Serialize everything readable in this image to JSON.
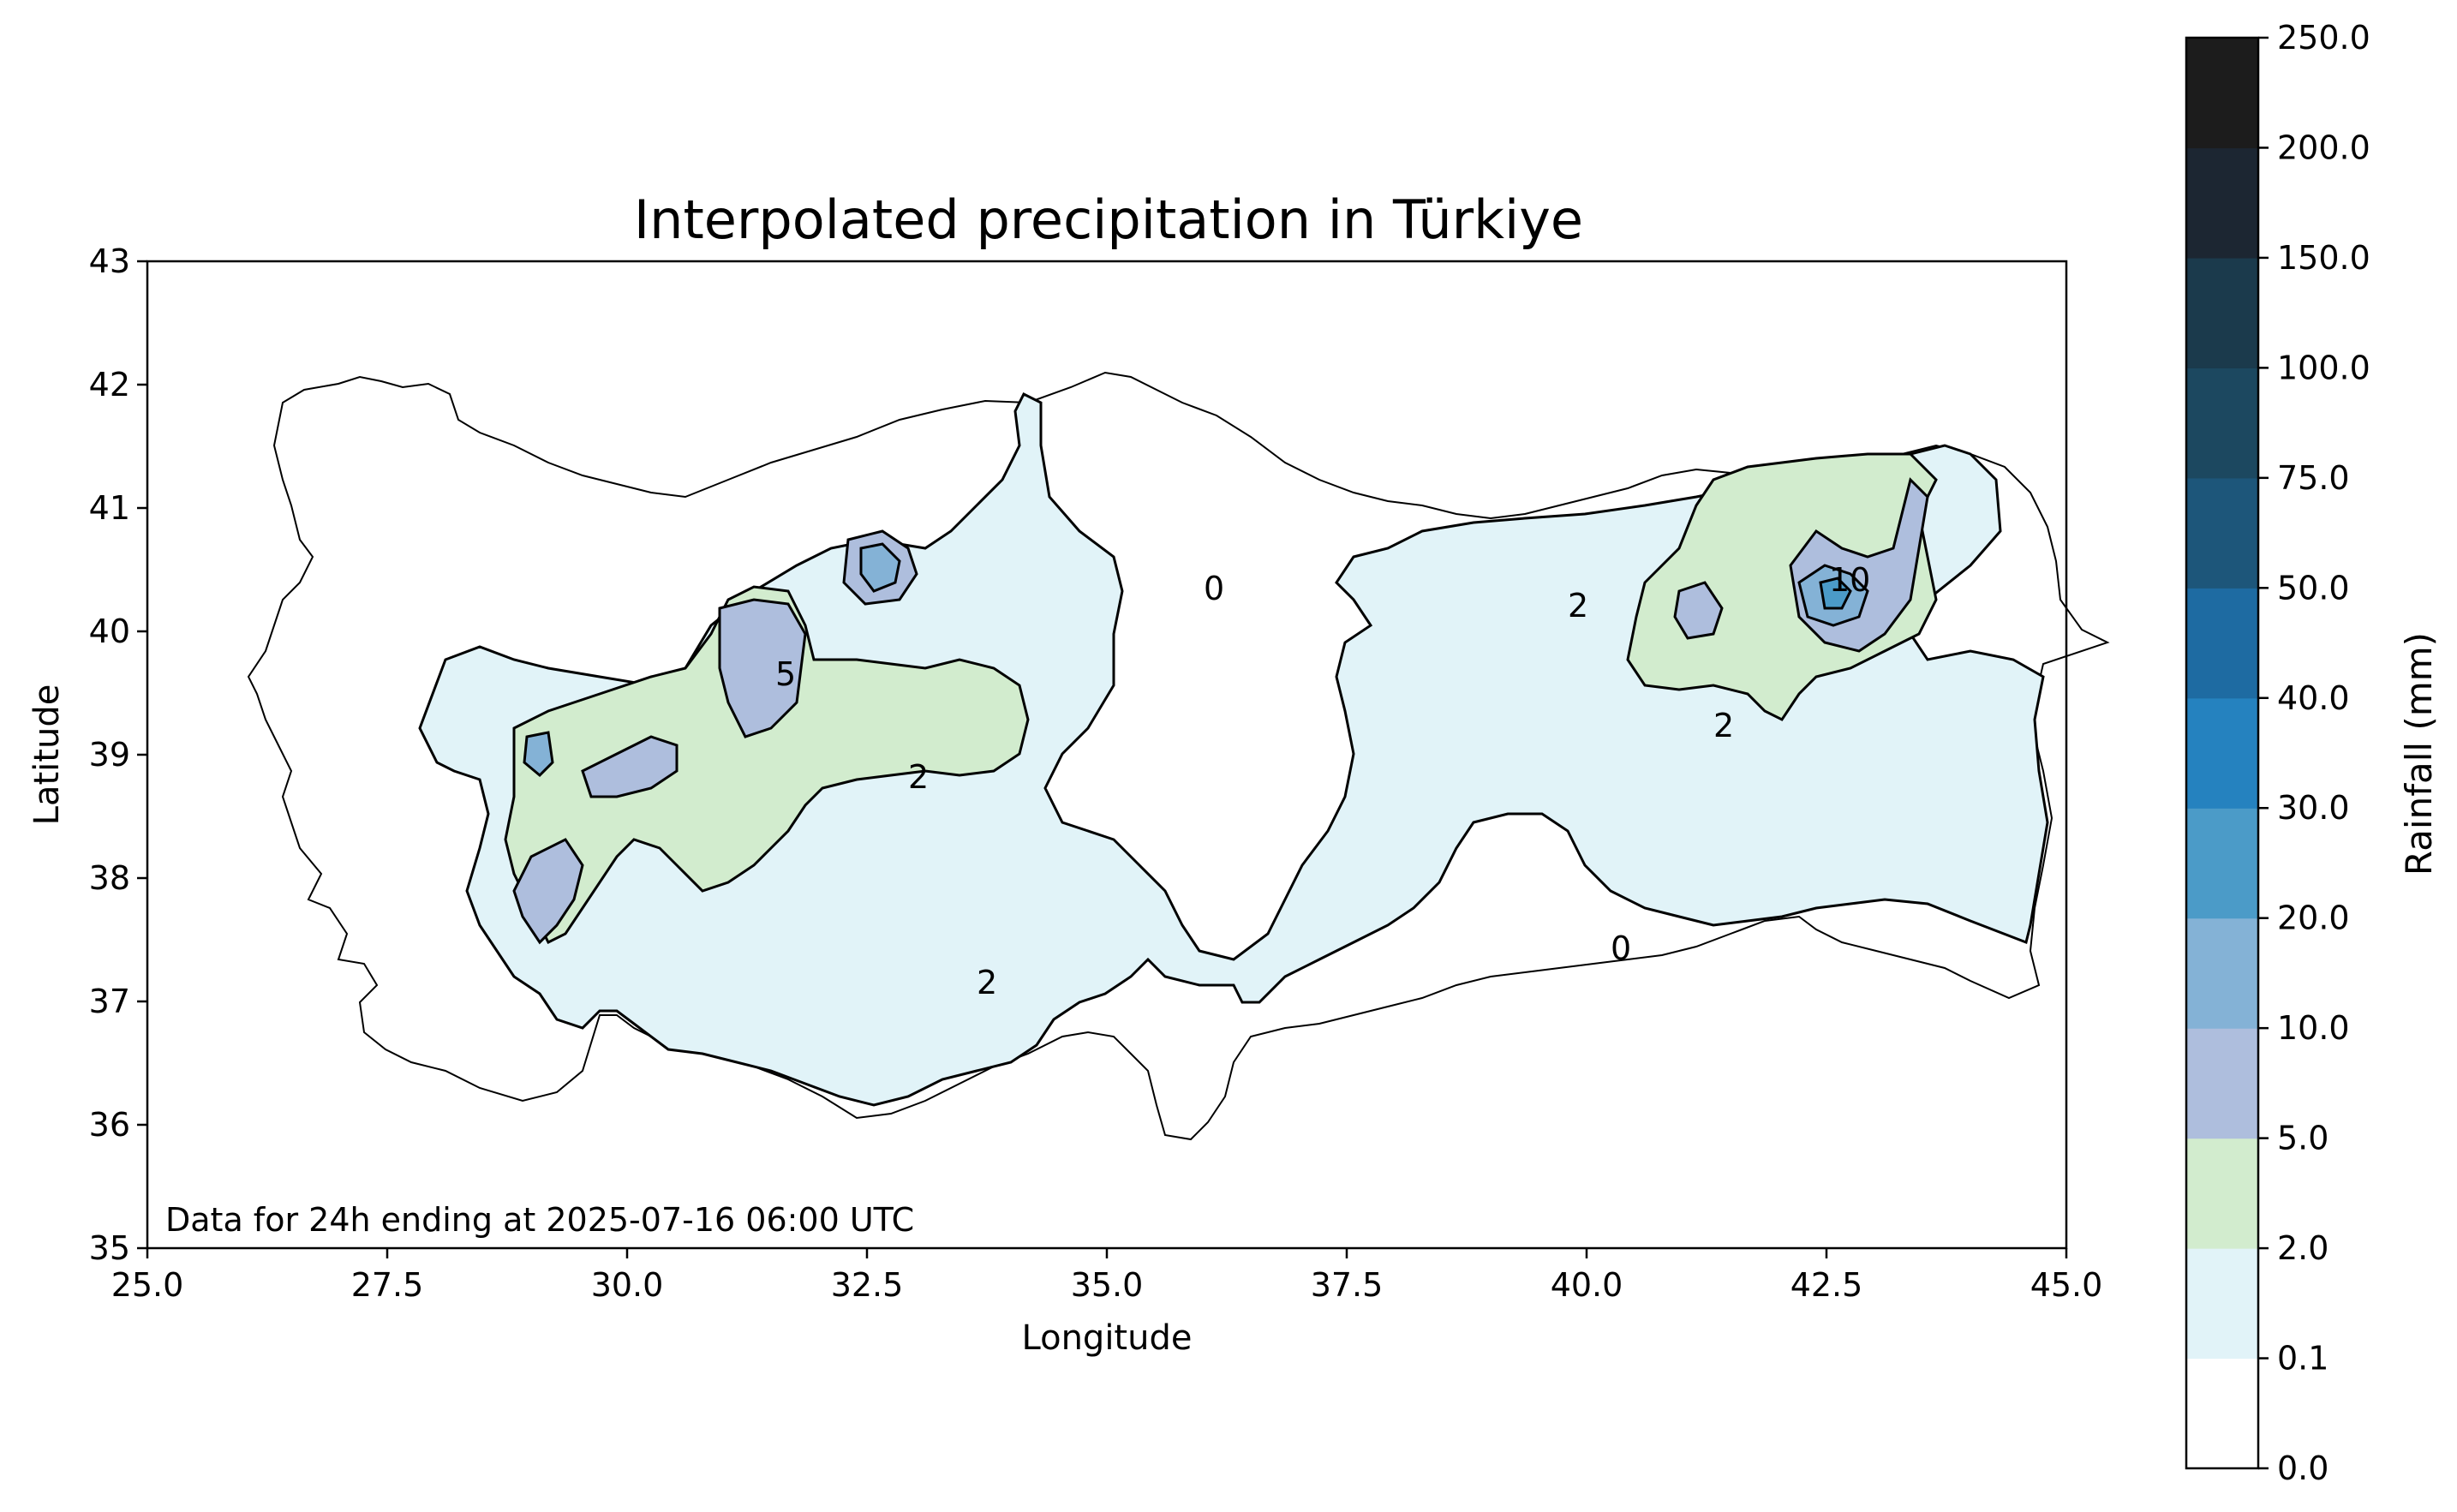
{
  "figure": {
    "title": "Interpolated precipitation in Türkiye",
    "xlabel": "Longitude",
    "ylabel": "Latitude",
    "note": "Data for 24h ending at 2025-07-16 06:00 UTC"
  },
  "axes": {
    "xlim": [
      25.0,
      45.0
    ],
    "ylim": [
      35,
      43
    ],
    "xticks": [
      "25.0",
      "27.5",
      "30.0",
      "32.5",
      "35.0",
      "37.5",
      "40.0",
      "42.5",
      "45.0"
    ],
    "yticks": [
      "35",
      "36",
      "37",
      "38",
      "39",
      "40",
      "41",
      "42",
      "43"
    ]
  },
  "colorbar": {
    "label": "Rainfall (mm)",
    "bounds": [
      "0.0",
      "0.1",
      "2.0",
      "5.0",
      "10.0",
      "20.0",
      "30.0",
      "40.0",
      "50.0",
      "75.0",
      "100.0",
      "150.0",
      "200.0",
      "250.0"
    ],
    "colors": [
      "#ffffff",
      "#e1f3f8",
      "#d2ecce",
      "#aebedd",
      "#84b2d6",
      "#4b9bc8",
      "#2582bf",
      "#1e6ba2",
      "#1d567a",
      "#1c4860",
      "#1b3a4c",
      "#1c2632",
      "#1c1c1c"
    ]
  },
  "map": {
    "type": "filled-contour",
    "region": "Türkiye",
    "contour_labels": [
      "0",
      "2",
      "5",
      "10"
    ],
    "regions": [
      {
        "level": "0.1-2.0",
        "color": "#e1f3f8"
      },
      {
        "level": "2.0-5.0",
        "color": "#d2ecce"
      },
      {
        "level": "5.0-10.0",
        "color": "#aebedd"
      },
      {
        "level": "10.0-20.0",
        "color": "#84b2d6"
      },
      {
        "level": "20.0-30.0",
        "color": "#4b9bc8"
      },
      {
        "level": "30.0-40.0",
        "color": "#2582bf"
      }
    ]
  }
}
